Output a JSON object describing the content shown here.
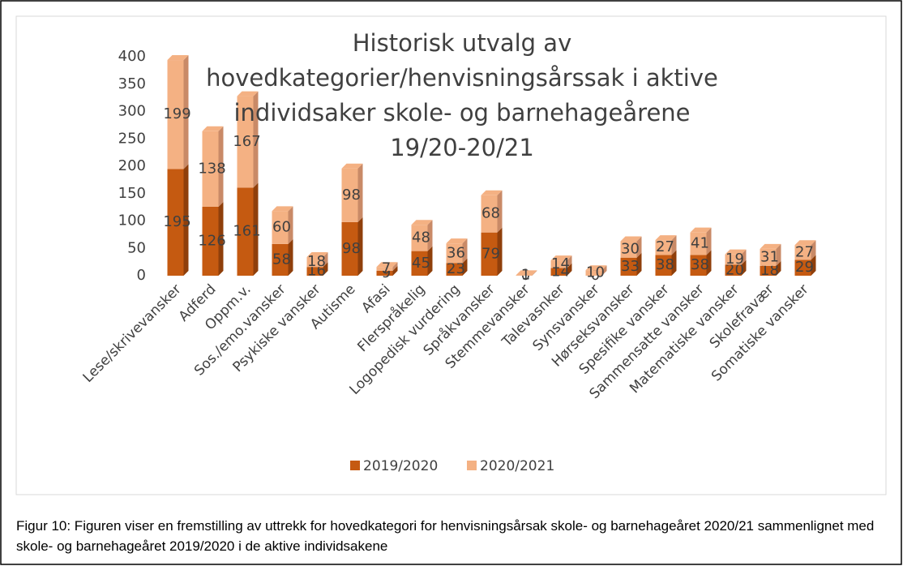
{
  "chart_data": {
    "type": "bar",
    "stacked": true,
    "grid": false,
    "title": "Historisk utvalg av hovedkategorier/henvisningsårssak i aktive individsaker skole- og barnehageårene 19/20-20/21",
    "caption": "Figur 10: Figuren viser en fremstilling av uttrekk for hovedkategori for henvisningsårsak skole- og barnehageåret 2020/21 sammenlignet med skole- og barnehageåret 2019/2020 i de aktive individsakene",
    "categories": [
      "Lese/skrivevansker",
      "Adferd",
      "Oppm.v.",
      "Sos./emo.vansker",
      "Psykiske vansker",
      "Autisme",
      "Afasi",
      "Flerspråkelig",
      "Logopedisk vurdering",
      "Språkvansker",
      "Stemmevansker",
      "Talevasnker",
      "Synsvansker",
      "Hørseksvansker",
      "Spesifike vansker",
      "Sammensatte vansker",
      "Matematiske vansker",
      "Skolefravær",
      "Somatiske vansker"
    ],
    "series": [
      {
        "name": "2019/2020",
        "color": "#c55a11",
        "side": "#8f3f0b",
        "values": [
          195,
          126,
          161,
          58,
          16,
          98,
          9,
          45,
          23,
          79,
          0,
          14,
          0,
          33,
          38,
          38,
          20,
          18,
          29
        ]
      },
      {
        "name": "2020/2021",
        "color": "#f4b183",
        "side": "#c98a67",
        "values": [
          199,
          138,
          167,
          60,
          18,
          98,
          7,
          48,
          36,
          68,
          1,
          14,
          10,
          30,
          27,
          41,
          19,
          31,
          27
        ]
      }
    ],
    "ylim": [
      0,
      400
    ],
    "yticks": [
      0,
      50,
      100,
      150,
      200,
      250,
      300,
      350,
      400
    ]
  }
}
